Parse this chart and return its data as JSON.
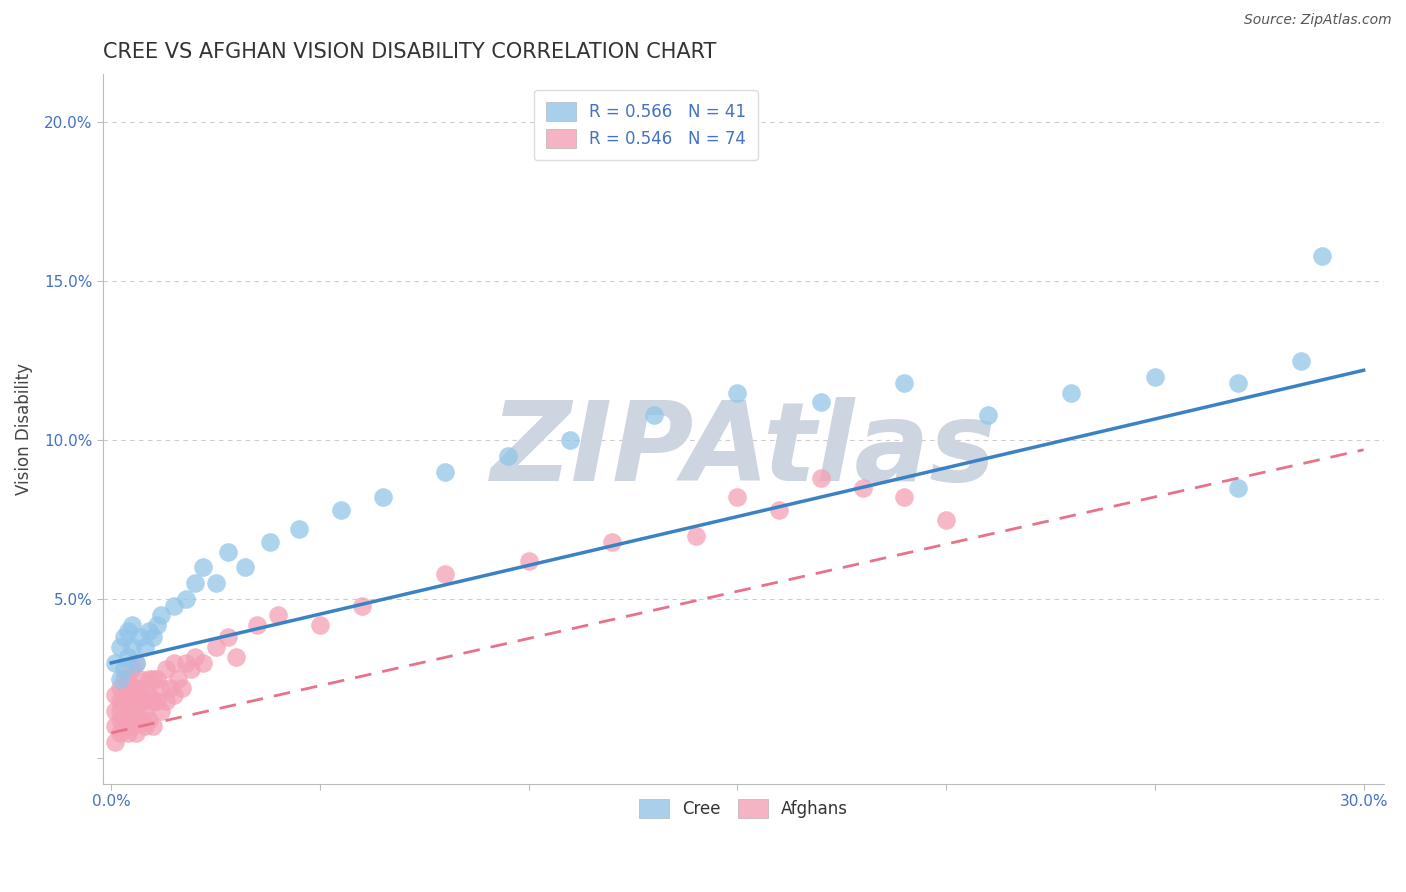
{
  "title": "CREE VS AFGHAN VISION DISABILITY CORRELATION CHART",
  "source": "Source: ZipAtlas.com",
  "ylabel": "Vision Disability",
  "xlim": [
    -0.002,
    0.305
  ],
  "ylim": [
    -0.008,
    0.215
  ],
  "xticks": [
    0.0,
    0.05,
    0.1,
    0.15,
    0.2,
    0.25,
    0.3
  ],
  "yticks": [
    0.0,
    0.05,
    0.1,
    0.15,
    0.2
  ],
  "grid_color": "#cccccc",
  "background_color": "#ffffff",
  "cree_color": "#92C5E8",
  "afghan_color": "#F4A0B5",
  "cree_line_color": "#3B82C4",
  "afghan_line_color": "#E8728A",
  "cree_R": 0.566,
  "cree_N": 41,
  "afghan_R": 0.546,
  "afghan_N": 74,
  "legend_label_cree": "R = 0.566   N = 41",
  "legend_label_afghan": "R = 0.546   N = 74",
  "cree_scatter_x": [
    0.001,
    0.002,
    0.002,
    0.003,
    0.003,
    0.004,
    0.004,
    0.005,
    0.005,
    0.006,
    0.007,
    0.008,
    0.009,
    0.01,
    0.011,
    0.012,
    0.015,
    0.018,
    0.02,
    0.022,
    0.025,
    0.028,
    0.032,
    0.038,
    0.045,
    0.055,
    0.065,
    0.08,
    0.095,
    0.11,
    0.13,
    0.15,
    0.17,
    0.19,
    0.21,
    0.23,
    0.25,
    0.27,
    0.285,
    0.29,
    0.27
  ],
  "cree_scatter_y": [
    0.03,
    0.025,
    0.035,
    0.028,
    0.038,
    0.032,
    0.04,
    0.035,
    0.042,
    0.03,
    0.038,
    0.035,
    0.04,
    0.038,
    0.042,
    0.045,
    0.048,
    0.05,
    0.055,
    0.06,
    0.055,
    0.065,
    0.06,
    0.068,
    0.072,
    0.078,
    0.082,
    0.09,
    0.095,
    0.1,
    0.108,
    0.115,
    0.112,
    0.118,
    0.108,
    0.115,
    0.12,
    0.118,
    0.125,
    0.158,
    0.085
  ],
  "afghan_scatter_x": [
    0.001,
    0.001,
    0.001,
    0.001,
    0.002,
    0.002,
    0.002,
    0.002,
    0.002,
    0.003,
    0.003,
    0.003,
    0.003,
    0.003,
    0.004,
    0.004,
    0.004,
    0.004,
    0.004,
    0.005,
    0.005,
    0.005,
    0.005,
    0.005,
    0.006,
    0.006,
    0.006,
    0.006,
    0.007,
    0.007,
    0.007,
    0.007,
    0.008,
    0.008,
    0.008,
    0.008,
    0.009,
    0.009,
    0.009,
    0.01,
    0.01,
    0.01,
    0.011,
    0.011,
    0.012,
    0.012,
    0.013,
    0.013,
    0.014,
    0.015,
    0.015,
    0.016,
    0.017,
    0.018,
    0.019,
    0.02,
    0.022,
    0.025,
    0.028,
    0.03,
    0.035,
    0.04,
    0.05,
    0.06,
    0.08,
    0.1,
    0.12,
    0.14,
    0.15,
    0.16,
    0.18,
    0.2,
    0.17,
    0.19
  ],
  "afghan_scatter_y": [
    0.01,
    0.015,
    0.02,
    0.005,
    0.012,
    0.018,
    0.022,
    0.008,
    0.015,
    0.01,
    0.018,
    0.025,
    0.012,
    0.02,
    0.015,
    0.022,
    0.008,
    0.018,
    0.025,
    0.012,
    0.02,
    0.028,
    0.01,
    0.018,
    0.015,
    0.022,
    0.03,
    0.008,
    0.018,
    0.025,
    0.012,
    0.02,
    0.015,
    0.022,
    0.01,
    0.018,
    0.025,
    0.012,
    0.02,
    0.018,
    0.025,
    0.01,
    0.018,
    0.025,
    0.015,
    0.022,
    0.018,
    0.028,
    0.022,
    0.02,
    0.03,
    0.025,
    0.022,
    0.03,
    0.028,
    0.032,
    0.03,
    0.035,
    0.038,
    0.032,
    0.042,
    0.045,
    0.042,
    0.048,
    0.058,
    0.062,
    0.068,
    0.07,
    0.082,
    0.078,
    0.085,
    0.075,
    0.088,
    0.082
  ],
  "cree_line_x0": 0.0,
  "cree_line_y0": 0.03,
  "cree_line_x1": 0.3,
  "cree_line_y1": 0.122,
  "afghan_line_x0": 0.0,
  "afghan_line_y0": 0.008,
  "afghan_line_x1": 0.3,
  "afghan_line_y1": 0.097,
  "watermark_text": "ZIPAtlas",
  "watermark_color": "#ccd5e0",
  "title_fontsize": 15,
  "label_fontsize": 12,
  "tick_fontsize": 11,
  "legend_fontsize": 12,
  "source_fontsize": 10
}
